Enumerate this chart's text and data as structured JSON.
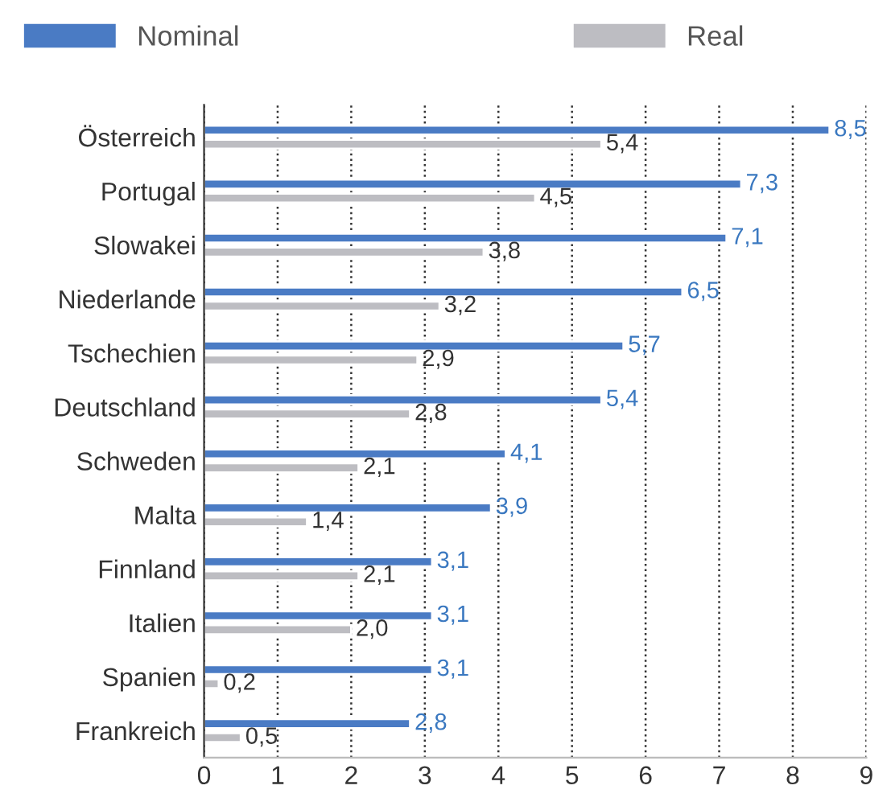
{
  "chart_data": {
    "type": "bar",
    "orientation": "horizontal",
    "categories": [
      "Österreich",
      "Portugal",
      "Slowakei",
      "Niederlande",
      "Tschechien",
      "Deutschland",
      "Schweden",
      "Malta",
      "Finnland",
      "Italien",
      "Spanien",
      "Frankreich"
    ],
    "series": [
      {
        "name": "Nominal",
        "color": "#4a7bc4",
        "values": [
          8.5,
          7.3,
          7.1,
          6.5,
          5.7,
          5.4,
          4.1,
          3.9,
          3.1,
          3.1,
          3.1,
          2.8
        ],
        "value_labels": [
          "8,5",
          "7,3",
          "7,1",
          "6,5",
          "5,7",
          "5,4",
          "4,1",
          "3,9",
          "3,1",
          "3,1",
          "3,1",
          "2,8"
        ]
      },
      {
        "name": "Real",
        "color": "#bdbdc2",
        "values": [
          5.4,
          4.5,
          3.8,
          3.2,
          2.9,
          2.8,
          2.1,
          1.4,
          2.1,
          2.0,
          0.2,
          0.5
        ],
        "value_labels": [
          "5,4",
          "4,5",
          "3,8",
          "3,2",
          "2,9",
          "2,8",
          "2,1",
          "1,4",
          "2,1",
          "2,0",
          "0,2",
          "0,5"
        ]
      }
    ],
    "xlim": [
      0,
      9
    ],
    "xticks": [
      0,
      1,
      2,
      3,
      4,
      5,
      6,
      7,
      8,
      9
    ],
    "grid": "x",
    "legend": "top left"
  }
}
